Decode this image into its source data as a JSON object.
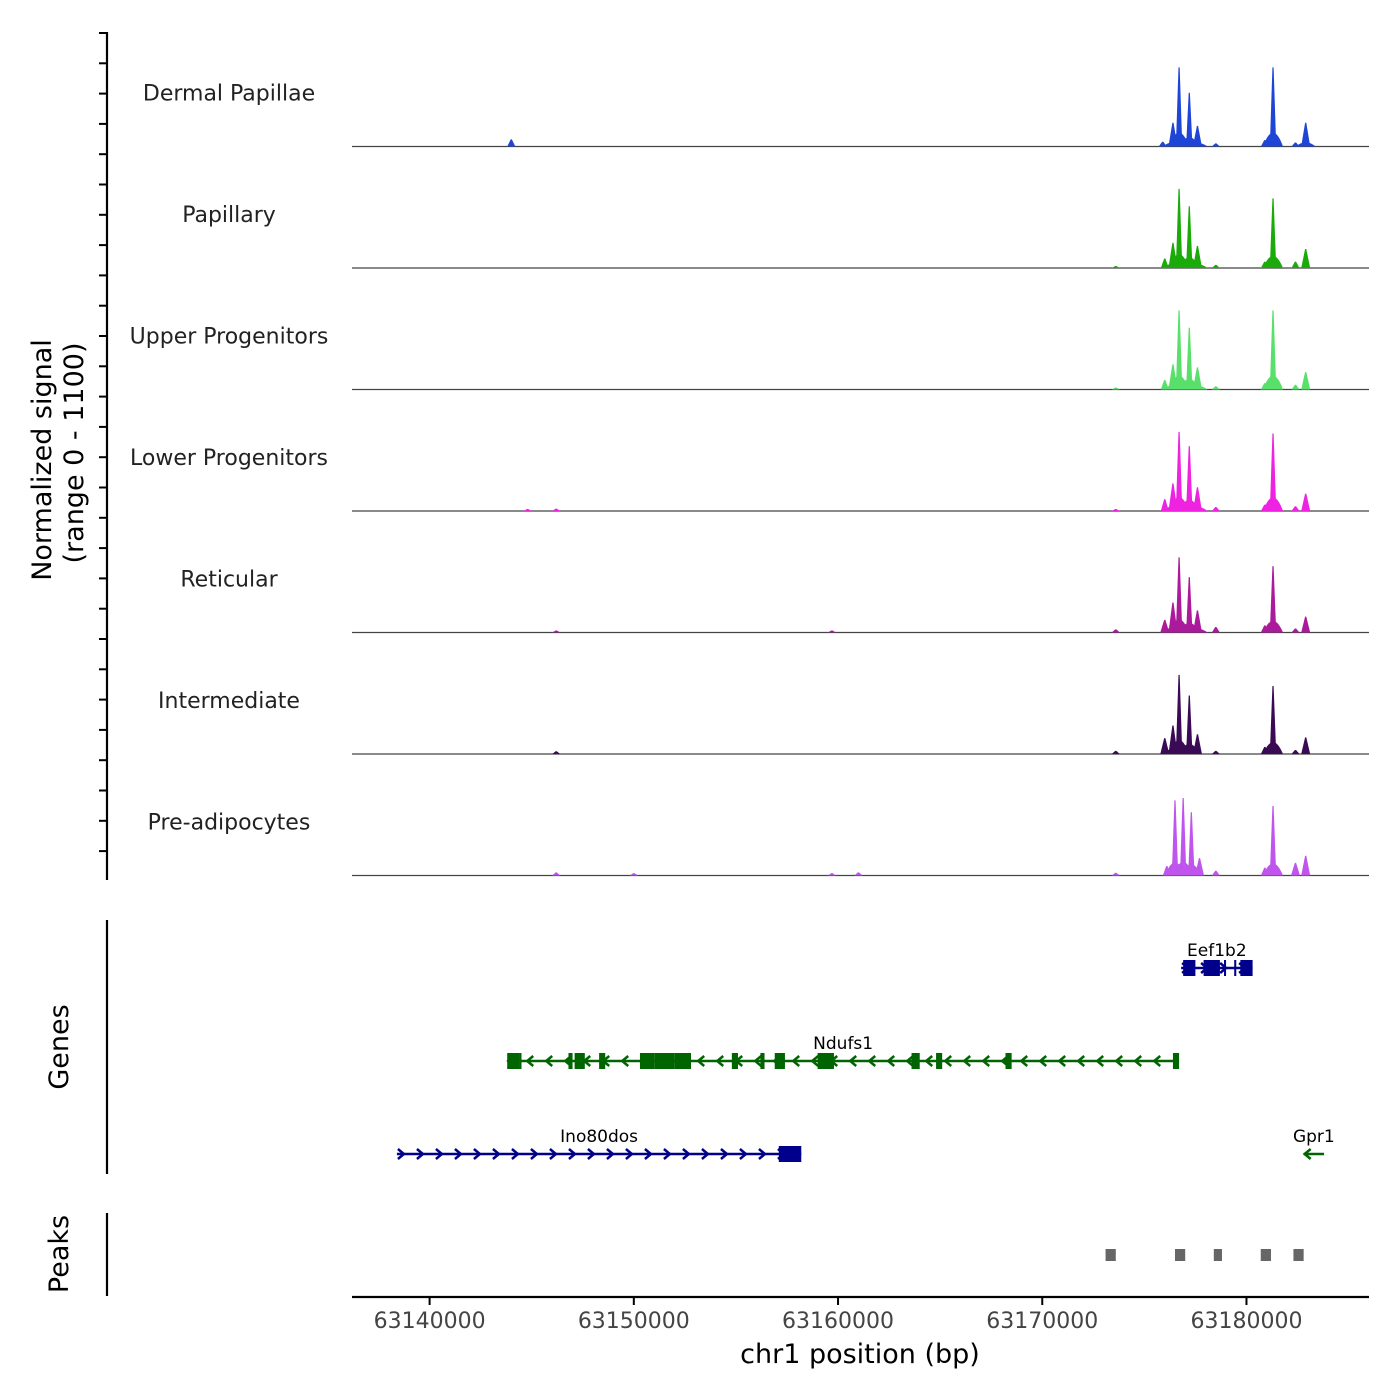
{
  "chart_data": {
    "type": "area",
    "title": "",
    "region": {
      "chrom": "chr1",
      "start": 63136200,
      "end": 63186000
    },
    "y_axis_label": "Normalized signal",
    "y_axis_range_label": "(range 0 - 1100)",
    "ylim": [
      0,
      1100
    ],
    "x_axis_label": "chr1 position (bp)",
    "x_ticks": [
      63140000,
      63150000,
      63160000,
      63170000,
      63180000
    ],
    "x_tick_labels": [
      "63140000",
      "63150000",
      "63160000",
      "63170000",
      "63180000"
    ],
    "genes_label": "Genes",
    "peaks_label": "Peaks",
    "tracks": [
      {
        "name": "Dermal Papillae",
        "color": "#1f45d6",
        "peaks": [
          [
            63144000,
            90
          ],
          [
            63175900,
            60
          ],
          [
            63176400,
            300
          ],
          [
            63176700,
            1000
          ],
          [
            63177200,
            680
          ],
          [
            63177600,
            260
          ],
          [
            63178500,
            40
          ],
          [
            63180900,
            80
          ],
          [
            63181300,
            1000
          ],
          [
            63182400,
            50
          ],
          [
            63182900,
            300
          ]
        ]
      },
      {
        "name": "Papillary",
        "color": "#1aaa0a",
        "peaks": [
          [
            63173600,
            25
          ],
          [
            63176000,
            120
          ],
          [
            63176400,
            320
          ],
          [
            63176700,
            1000
          ],
          [
            63177200,
            780
          ],
          [
            63177600,
            280
          ],
          [
            63178500,
            40
          ],
          [
            63180900,
            80
          ],
          [
            63181300,
            880
          ],
          [
            63182400,
            80
          ],
          [
            63182900,
            240
          ]
        ]
      },
      {
        "name": "Upper Progenitors",
        "color": "#58e06a",
        "peaks": [
          [
            63173600,
            20
          ],
          [
            63176000,
            120
          ],
          [
            63176400,
            320
          ],
          [
            63176700,
            1000
          ],
          [
            63177200,
            780
          ],
          [
            63177600,
            280
          ],
          [
            63178500,
            40
          ],
          [
            63180900,
            80
          ],
          [
            63181300,
            1000
          ],
          [
            63182400,
            60
          ],
          [
            63182900,
            220
          ]
        ]
      },
      {
        "name": "Lower Progenitors",
        "color": "#ee22e0",
        "peaks": [
          [
            63144800,
            25
          ],
          [
            63146200,
            30
          ],
          [
            63173600,
            25
          ],
          [
            63176000,
            150
          ],
          [
            63176400,
            350
          ],
          [
            63176700,
            1000
          ],
          [
            63177200,
            820
          ],
          [
            63177600,
            300
          ],
          [
            63178500,
            50
          ],
          [
            63180900,
            80
          ],
          [
            63181300,
            980
          ],
          [
            63182400,
            60
          ],
          [
            63182900,
            220
          ]
        ]
      },
      {
        "name": "Reticular",
        "color": "#aa1a9a",
        "peaks": [
          [
            63146200,
            20
          ],
          [
            63159700,
            20
          ],
          [
            63173600,
            40
          ],
          [
            63176000,
            160
          ],
          [
            63176400,
            380
          ],
          [
            63176700,
            950
          ],
          [
            63177200,
            700
          ],
          [
            63177600,
            280
          ],
          [
            63178500,
            70
          ],
          [
            63180900,
            90
          ],
          [
            63181300,
            840
          ],
          [
            63182400,
            50
          ],
          [
            63182900,
            200
          ]
        ]
      },
      {
        "name": "Intermediate",
        "color": "#3a0a55",
        "peaks": [
          [
            63146200,
            35
          ],
          [
            63173600,
            40
          ],
          [
            63176000,
            200
          ],
          [
            63176400,
            360
          ],
          [
            63176700,
            1000
          ],
          [
            63177200,
            740
          ],
          [
            63177600,
            250
          ],
          [
            63178500,
            40
          ],
          [
            63180900,
            90
          ],
          [
            63181300,
            860
          ],
          [
            63182400,
            50
          ],
          [
            63182900,
            210
          ]
        ]
      },
      {
        "name": "Pre-adipocytes",
        "color": "#c055ee",
        "peaks": [
          [
            63146200,
            40
          ],
          [
            63150000,
            30
          ],
          [
            63159700,
            30
          ],
          [
            63161000,
            40
          ],
          [
            63173600,
            35
          ],
          [
            63176100,
            120
          ],
          [
            63176500,
            950
          ],
          [
            63176900,
            980
          ],
          [
            63177300,
            800
          ],
          [
            63177700,
            220
          ],
          [
            63178500,
            60
          ],
          [
            63180900,
            100
          ],
          [
            63181300,
            880
          ],
          [
            63182400,
            160
          ],
          [
            63182900,
            250
          ]
        ]
      }
    ],
    "genes": [
      {
        "name": "Eef1b2",
        "strand": "+",
        "color": "#00008b",
        "start": 63176800,
        "end": 63180300,
        "exons": [
          [
            63176900,
            63177500
          ],
          [
            63177900,
            63178700
          ],
          [
            63178900,
            63179000
          ],
          [
            63179400,
            63179500
          ],
          [
            63179700,
            63180300
          ]
        ]
      },
      {
        "name": "Ndufs1",
        "strand": "-",
        "color": "#006400",
        "start": 63143800,
        "end": 63176700,
        "exons": [
          [
            63143800,
            63144400
          ],
          [
            63144400,
            63144500
          ],
          [
            63146800,
            63147000
          ],
          [
            63147100,
            63147600
          ],
          [
            63148300,
            63148600
          ],
          [
            63150300,
            63151000
          ],
          [
            63151000,
            63152000
          ],
          [
            63152000,
            63152800
          ],
          [
            63154800,
            63155100
          ],
          [
            63156200,
            63156400
          ],
          [
            63156900,
            63157400
          ],
          [
            63159000,
            63159800
          ],
          [
            63163600,
            63164000
          ],
          [
            63164800,
            63165100
          ],
          [
            63168200,
            63168500
          ],
          [
            63176400,
            63176700
          ]
        ]
      },
      {
        "name": "Ino80dos",
        "strand": "+",
        "color": "#00008b",
        "start": 63138400,
        "end": 63158200,
        "exons": [
          [
            63157100,
            63158200
          ]
        ]
      },
      {
        "name": "Gpr1",
        "strand": "-",
        "color": "#006400",
        "start": 63182800,
        "end": 63183800,
        "exons": []
      }
    ],
    "peak_regions": [
      [
        63173100,
        63173600
      ],
      [
        63176500,
        63177000
      ],
      [
        63178400,
        63178800
      ],
      [
        63180700,
        63181200
      ],
      [
        63182300,
        63182800
      ]
    ]
  }
}
